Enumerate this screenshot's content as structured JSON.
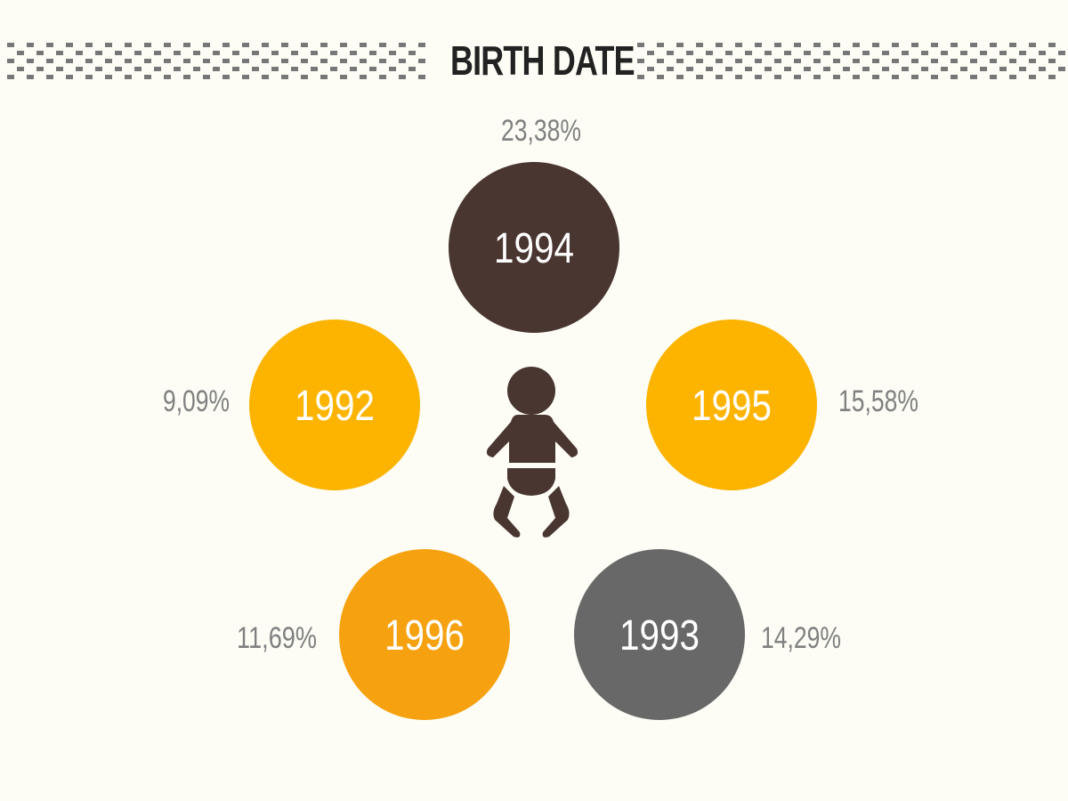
{
  "header": {
    "title": "BIRTH DATE"
  },
  "icon": "baby-icon",
  "colors": {
    "background": "#fdfdf6",
    "pattern": "#777777",
    "title": "#222222",
    "baby_icon": "#4a3631",
    "percent_text": "#808080"
  },
  "chart_data": {
    "type": "bubble",
    "title": "BIRTH DATE",
    "unit": "%",
    "items": [
      {
        "year": "1994",
        "value": 23.38,
        "label": "23,38%",
        "color": "#4a3631",
        "label_position": "top"
      },
      {
        "year": "1992",
        "value": 9.09,
        "label": "9,09%",
        "color": "#fdb400",
        "label_position": "left"
      },
      {
        "year": "1995",
        "value": 15.58,
        "label": "15,58%",
        "color": "#fdb400",
        "label_position": "right"
      },
      {
        "year": "1996",
        "value": 11.69,
        "label": "11,69%",
        "color": "#f6a10f",
        "label_position": "left"
      },
      {
        "year": "1993",
        "value": 14.29,
        "label": "14,29%",
        "color": "#686868",
        "label_position": "right"
      }
    ]
  }
}
